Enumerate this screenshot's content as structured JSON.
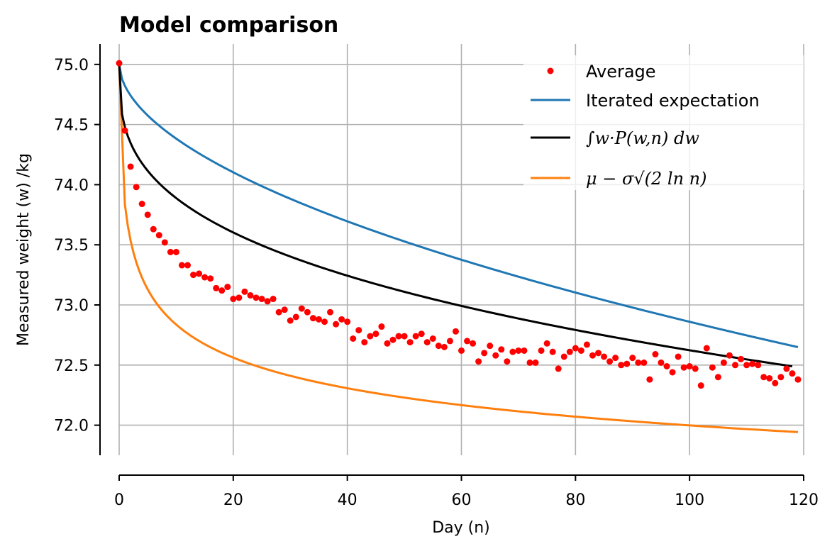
{
  "chart_data": {
    "type": "line",
    "title": "Model comparison",
    "xlabel": "Day (n)",
    "ylabel": "Measured weight (w) /kg",
    "xlim": [
      0,
      120
    ],
    "ylim": [
      71.75,
      75.17
    ],
    "xticks": [
      0,
      20,
      40,
      60,
      80,
      100,
      120
    ],
    "yticks": [
      72.0,
      72.5,
      73.0,
      73.5,
      74.0,
      74.5,
      75.0
    ],
    "xtick_labels": [
      "0",
      "20",
      "40",
      "60",
      "80",
      "100",
      "120"
    ],
    "ytick_labels": [
      "72.0",
      "72.5",
      "73.0",
      "73.5",
      "74.0",
      "74.5",
      "75.0"
    ],
    "grid": true,
    "legend_position": "top-right",
    "legend": [
      {
        "label": "Average",
        "kind": "marker",
        "color": "#ff0000"
      },
      {
        "label": "Iterated expectation",
        "kind": "line",
        "color": "#1f77b4"
      },
      {
        "label": "∫w·P(w,n) dw",
        "kind": "line",
        "color": "#000000"
      },
      {
        "label": "μ − σ√(2 ln n)",
        "kind": "line",
        "color": "#ff7f0e"
      }
    ],
    "series": [
      {
        "name": "Average",
        "style": "scatter",
        "color": "#ff0000",
        "x": [
          0,
          1,
          2,
          3,
          4,
          5,
          6,
          7,
          8,
          9,
          10,
          11,
          12,
          13,
          14,
          15,
          16,
          17,
          18,
          19,
          20,
          21,
          22,
          23,
          24,
          25,
          26,
          27,
          28,
          29,
          30,
          31,
          32,
          33,
          34,
          35,
          36,
          37,
          38,
          39,
          40,
          41,
          42,
          43,
          44,
          45,
          46,
          47,
          48,
          49,
          50,
          51,
          52,
          53,
          54,
          55,
          56,
          57,
          58,
          59,
          60,
          61,
          62,
          63,
          64,
          65,
          66,
          67,
          68,
          69,
          70,
          71,
          72,
          73,
          74,
          75,
          76,
          77,
          78,
          79,
          80,
          81,
          82,
          83,
          84,
          85,
          86,
          87,
          88,
          89,
          90,
          91,
          92,
          93,
          94,
          95,
          96,
          97,
          98,
          99,
          100,
          101,
          102,
          103,
          104,
          105,
          106,
          107,
          108,
          109,
          110,
          111,
          112,
          113,
          114,
          115,
          116,
          117,
          118,
          119
        ],
        "y": [
          75.01,
          74.45,
          74.15,
          73.98,
          73.84,
          73.75,
          73.63,
          73.58,
          73.52,
          73.44,
          73.44,
          73.33,
          73.33,
          73.25,
          73.26,
          73.23,
          73.22,
          73.14,
          73.12,
          73.15,
          73.05,
          73.06,
          73.11,
          73.08,
          73.06,
          73.05,
          73.03,
          73.05,
          72.94,
          72.96,
          72.87,
          72.9,
          72.97,
          72.94,
          72.89,
          72.88,
          72.86,
          72.94,
          72.84,
          72.88,
          72.86,
          72.72,
          72.79,
          72.69,
          72.74,
          72.76,
          72.82,
          72.68,
          72.71,
          72.74,
          72.74,
          72.69,
          72.74,
          72.76,
          72.69,
          72.72,
          72.66,
          72.65,
          72.7,
          72.78,
          72.62,
          72.7,
          72.68,
          72.53,
          72.6,
          72.66,
          72.58,
          72.63,
          72.53,
          72.61,
          72.62,
          72.62,
          72.52,
          72.52,
          72.62,
          72.68,
          72.61,
          72.47,
          72.57,
          72.61,
          72.64,
          72.62,
          72.67,
          72.58,
          72.6,
          72.57,
          72.53,
          72.56,
          72.5,
          72.51,
          72.56,
          72.52,
          72.52,
          72.38,
          72.59,
          72.52,
          72.49,
          72.44,
          72.57,
          72.48,
          72.49,
          72.47,
          72.33,
          72.64,
          72.48,
          72.4,
          72.52,
          72.58,
          72.5,
          72.55,
          72.5,
          72.51,
          72.5,
          72.4,
          72.39,
          72.35,
          72.4,
          72.47,
          72.43,
          72.38
        ]
      },
      {
        "name": "Iterated expectation",
        "style": "line",
        "color": "#1f77b4",
        "formula_note": "75.0 - 0.0198*n^0.81 shape"
      },
      {
        "name": "∫w·P(w,n) dw",
        "style": "line",
        "color": "#000000"
      },
      {
        "name": "μ − σ√(2 ln n)",
        "style": "line",
        "color": "#ff7f0e"
      }
    ]
  }
}
